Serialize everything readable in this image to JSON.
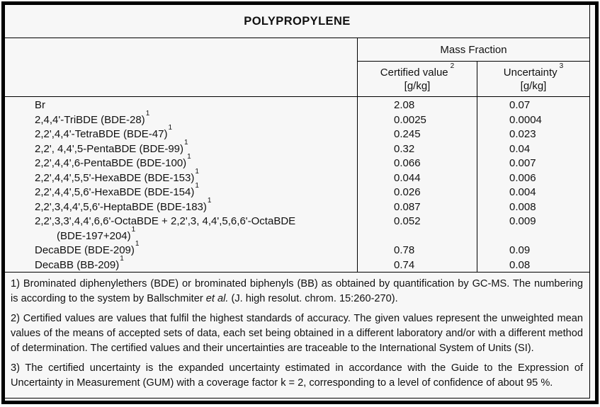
{
  "title": "POLYPROPYLENE",
  "table": {
    "group_header": "Mass Fraction",
    "columns": [
      {
        "label": "Certified value",
        "sup": "2",
        "unit": "[g/kg]"
      },
      {
        "label": "Uncertainty",
        "sup": "3",
        "unit": "[g/kg]"
      }
    ],
    "rows": [
      {
        "name": "Br",
        "sup": "",
        "certified": "2.08",
        "uncertainty": "0.07"
      },
      {
        "name": "2,4,4'-TriBDE (BDE-28)",
        "sup": "1",
        "certified": "0.0025",
        "uncertainty": "0.0004"
      },
      {
        "name": "2,2',4,4'-TetraBDE (BDE-47)",
        "sup": "1",
        "certified": "0.245",
        "uncertainty": "0.023"
      },
      {
        "name": "2,2', 4,4',5-PentaBDE (BDE-99)",
        "sup": "1",
        "certified": "0.32",
        "uncertainty": "0.04"
      },
      {
        "name": "2,2',4,4',6-PentaBDE (BDE-100)",
        "sup": "1",
        "certified": "0.066",
        "uncertainty": "0.007"
      },
      {
        "name": "2,2',4,4',5,5'-HexaBDE (BDE-153)",
        "sup": "1",
        "certified": "0.044",
        "uncertainty": "0.006"
      },
      {
        "name": "2,2',4,4',5,6'-HexaBDE (BDE-154)",
        "sup": "1",
        "certified": "0.026",
        "uncertainty": "0.004"
      },
      {
        "name": "2,2',3,4,4',5,6'-HeptaBDE (BDE-183)",
        "sup": "1",
        "certified": "0.087",
        "uncertainty": "0.008"
      },
      {
        "name": "2,2',3,3',4,4',6,6'-OctaBDE + 2,2',3, 4,4',5,6,6'-OctaBDE",
        "sup": "",
        "certified": "0.052",
        "uncertainty": "0.009"
      },
      {
        "name": "(BDE-197+204)",
        "sup": "1",
        "certified": "",
        "uncertainty": ""
      },
      {
        "name": "DecaBDE (BDE-209)",
        "sup": "1",
        "certified": "0.78",
        "uncertainty": "0.09"
      },
      {
        "name": "DecaBB (BB-209)",
        "sup": "1",
        "certified": "0.74",
        "uncertainty": "0.08"
      }
    ]
  },
  "footnotes": {
    "fn1_pre": "1) Brominated diphenylethers (BDE) or brominated biphenyls (BB) as obtained by quantification by GC-MS. The numbering is according to the system by Ballschmiter ",
    "fn1_italic": "et al.",
    "fn1_post": " (J. high resolut. chrom. 15:260-270).",
    "fn2": "2) Certified values are values that fulfil the highest standards of accuracy. The given values represent the unweighted mean values of the means of accepted sets of data, each set being obtained in a different laboratory and/or with a different method of determination. The certified values and their uncertainties are traceable to the International System of Units (SI).",
    "fn3": "3) The certified uncertainty is the expanded uncertainty estimated in accordance with the Guide to the Expression of Uncertainty in Measurement (GUM) with a coverage factor k = 2, corresponding to a level of confidence of about 95 %."
  },
  "colors": {
    "border": "#000000",
    "background": "#f7f7f7",
    "text": "#111111"
  }
}
